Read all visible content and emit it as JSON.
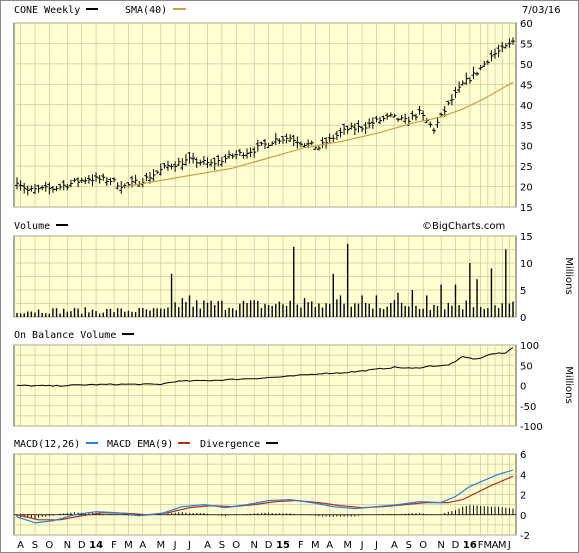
{
  "chart_data": [
    {
      "panel": "price",
      "type": "ohlc",
      "title": "CONE Weekly",
      "date": "7/03/16",
      "legend": [
        {
          "name": "CONE Weekly",
          "color": "#000000"
        },
        {
          "name": "SMA(40)",
          "color": "#c8a040"
        }
      ],
      "ylim": [
        15,
        60
      ],
      "yticks": [
        15,
        20,
        25,
        30,
        35,
        40,
        45,
        50,
        55,
        60
      ],
      "series_keypoints": {
        "close": [
          [
            0,
            21.5
          ],
          [
            3,
            19
          ],
          [
            10,
            19.5
          ],
          [
            14,
            20.5
          ],
          [
            20,
            22
          ],
          [
            26,
            21.5
          ],
          [
            30,
            20
          ],
          [
            36,
            22
          ],
          [
            42,
            25
          ],
          [
            48,
            26.5
          ],
          [
            54,
            25.5
          ],
          [
            60,
            27.5
          ],
          [
            66,
            29
          ],
          [
            72,
            31.5
          ],
          [
            76,
            32
          ],
          [
            80,
            30.5
          ],
          [
            84,
            29.5
          ],
          [
            88,
            32
          ],
          [
            92,
            34
          ],
          [
            96,
            34.5
          ],
          [
            100,
            36
          ],
          [
            104,
            37
          ],
          [
            108,
            36
          ],
          [
            112,
            38
          ],
          [
            116,
            34
          ],
          [
            120,
            40
          ],
          [
            124,
            45
          ],
          [
            128,
            48
          ],
          [
            132,
            52
          ],
          [
            136,
            54
          ],
          [
            138,
            55.5
          ]
        ],
        "sma40": [
          [
            30,
            20
          ],
          [
            40,
            21.5
          ],
          [
            50,
            23
          ],
          [
            60,
            24.5
          ],
          [
            70,
            27
          ],
          [
            80,
            29.5
          ],
          [
            90,
            31
          ],
          [
            100,
            33
          ],
          [
            110,
            35.5
          ],
          [
            118,
            37
          ],
          [
            124,
            39
          ],
          [
            130,
            41.5
          ],
          [
            136,
            44.5
          ],
          [
            138,
            45.5
          ]
        ]
      }
    },
    {
      "panel": "volume",
      "type": "bar",
      "title": "Volume",
      "ylabel": "Millions",
      "ylim": [
        0,
        15
      ],
      "yticks": [
        0,
        5,
        10,
        15
      ],
      "spikes": [
        [
          43,
          8
        ],
        [
          46,
          3.5
        ],
        [
          48,
          4
        ],
        [
          76,
          3
        ],
        [
          77,
          13
        ],
        [
          80,
          3.5
        ],
        [
          84,
          2.5
        ],
        [
          88,
          8
        ],
        [
          90,
          4
        ],
        [
          92,
          13.5
        ],
        [
          96,
          4
        ],
        [
          100,
          4
        ],
        [
          106,
          4.5
        ],
        [
          110,
          5
        ],
        [
          114,
          4
        ],
        [
          118,
          6
        ],
        [
          122,
          6
        ],
        [
          126,
          10
        ],
        [
          128,
          7
        ],
        [
          132,
          9
        ],
        [
          136,
          12.5
        ]
      ]
    },
    {
      "panel": "obv",
      "type": "line",
      "title": "On Balance Volume",
      "ylabel": "Millions",
      "ylim": [
        -100,
        100
      ],
      "yticks": [
        -100,
        -50,
        0,
        50,
        100
      ],
      "series_keypoints": [
        [
          0,
          0
        ],
        [
          10,
          -1
        ],
        [
          20,
          2
        ],
        [
          30,
          3
        ],
        [
          40,
          3
        ],
        [
          44,
          10
        ],
        [
          55,
          13
        ],
        [
          65,
          17
        ],
        [
          75,
          22
        ],
        [
          85,
          30
        ],
        [
          90,
          31
        ],
        [
          95,
          35
        ],
        [
          100,
          40
        ],
        [
          105,
          45
        ],
        [
          110,
          42
        ],
        [
          115,
          48
        ],
        [
          120,
          50
        ],
        [
          124,
          70
        ],
        [
          128,
          65
        ],
        [
          132,
          78
        ],
        [
          136,
          80
        ],
        [
          138,
          95
        ]
      ]
    },
    {
      "panel": "macd",
      "type": "line",
      "title": "MACD(12,26)",
      "legend": [
        {
          "name": "MACD(12,26)",
          "color": "#2a7de1"
        },
        {
          "name": "MACD EMA(9)",
          "color": "#b03020"
        },
        {
          "name": "Divergence",
          "color": "#000000"
        }
      ],
      "ylim": [
        -2,
        6
      ],
      "yticks": [
        -2,
        0,
        2,
        4,
        6
      ],
      "macd_keypoints": [
        [
          0,
          -0.2
        ],
        [
          5,
          -0.8
        ],
        [
          10,
          -0.6
        ],
        [
          16,
          0
        ],
        [
          22,
          0.3
        ],
        [
          28,
          0.2
        ],
        [
          34,
          -0.1
        ],
        [
          40,
          0.1
        ],
        [
          46,
          0.8
        ],
        [
          52,
          1
        ],
        [
          58,
          0.7
        ],
        [
          64,
          1
        ],
        [
          70,
          1.4
        ],
        [
          76,
          1.5
        ],
        [
          82,
          1.2
        ],
        [
          88,
          0.8
        ],
        [
          94,
          0.6
        ],
        [
          100,
          0.8
        ],
        [
          106,
          1
        ],
        [
          112,
          1.3
        ],
        [
          118,
          1.2
        ],
        [
          122,
          1.8
        ],
        [
          126,
          2.8
        ],
        [
          130,
          3.4
        ],
        [
          134,
          4
        ],
        [
          138,
          4.4
        ]
      ],
      "signal_keypoints": [
        [
          0,
          0
        ],
        [
          6,
          -0.5
        ],
        [
          12,
          -0.5
        ],
        [
          18,
          -0.1
        ],
        [
          24,
          0.2
        ],
        [
          30,
          0.15
        ],
        [
          36,
          0
        ],
        [
          42,
          0.2
        ],
        [
          48,
          0.7
        ],
        [
          54,
          0.9
        ],
        [
          60,
          0.8
        ],
        [
          66,
          1
        ],
        [
          72,
          1.3
        ],
        [
          78,
          1.4
        ],
        [
          84,
          1.2
        ],
        [
          90,
          0.9
        ],
        [
          96,
          0.7
        ],
        [
          102,
          0.8
        ],
        [
          108,
          1
        ],
        [
          114,
          1.2
        ],
        [
          120,
          1.2
        ],
        [
          124,
          1.5
        ],
        [
          128,
          2.2
        ],
        [
          132,
          2.9
        ],
        [
          136,
          3.5
        ],
        [
          138,
          3.8
        ]
      ]
    }
  ],
  "x_axis": {
    "weeks": 139,
    "labels": [
      {
        "text": "A",
        "week": 1
      },
      {
        "text": "S",
        "week": 5
      },
      {
        "text": "O",
        "week": 9
      },
      {
        "text": "N",
        "week": 14
      },
      {
        "text": "D",
        "week": 18
      },
      {
        "text": "14",
        "week": 22,
        "bold": true
      },
      {
        "text": "F",
        "week": 27
      },
      {
        "text": "M",
        "week": 31
      },
      {
        "text": "A",
        "week": 35
      },
      {
        "text": "M",
        "week": 40
      },
      {
        "text": "J",
        "week": 44
      },
      {
        "text": "J",
        "week": 48
      },
      {
        "text": "A",
        "week": 53
      },
      {
        "text": "S",
        "week": 57
      },
      {
        "text": "O",
        "week": 61
      },
      {
        "text": "N",
        "week": 66
      },
      {
        "text": "D",
        "week": 70
      },
      {
        "text": "15",
        "week": 74,
        "bold": true
      },
      {
        "text": "F",
        "week": 79
      },
      {
        "text": "M",
        "week": 83
      },
      {
        "text": "A",
        "week": 87
      },
      {
        "text": "M",
        "week": 92
      },
      {
        "text": "J",
        "week": 96
      },
      {
        "text": "J",
        "week": 100
      },
      {
        "text": "A",
        "week": 105
      },
      {
        "text": "S",
        "week": 109
      },
      {
        "text": "O",
        "week": 113
      },
      {
        "text": "N",
        "week": 118
      },
      {
        "text": "D",
        "week": 122
      },
      {
        "text": "16",
        "week": 126,
        "bold": true
      },
      {
        "text": "F",
        "week": 129
      },
      {
        "text": "M",
        "week": 131
      },
      {
        "text": "A",
        "week": 133
      },
      {
        "text": "M",
        "week": 135
      },
      {
        "text": "J",
        "week": 137
      }
    ]
  },
  "watermark": "©BigCharts.com",
  "colors": {
    "panel_bg": "#ffffd0",
    "grid": "#c8c8a0",
    "price": "#000000",
    "sma": "#c8a040",
    "macd": "#2a7de1",
    "signal": "#b03020"
  }
}
